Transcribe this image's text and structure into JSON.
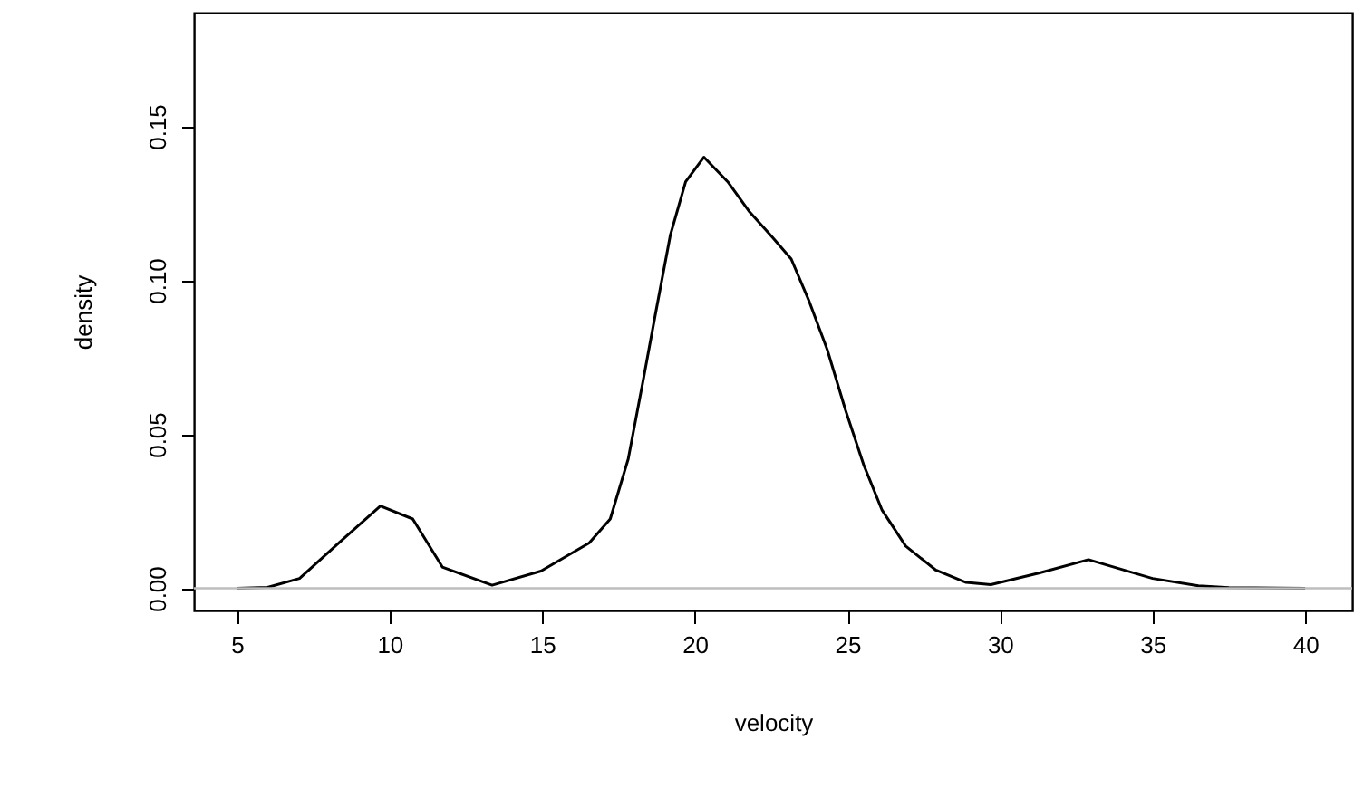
{
  "chart_data": {
    "type": "line",
    "xlabel": "velocity",
    "ylabel": "density",
    "x": [
      5,
      6,
      7.05,
      8.28,
      9.7,
      10.76,
      11.73,
      13.36,
      14.96,
      16.54,
      17.23,
      17.82,
      18.31,
      18.71,
      19.2,
      19.7,
      20.3,
      21.08,
      21.77,
      22.57,
      23.16,
      23.75,
      24.34,
      24.94,
      25.53,
      26.13,
      26.91,
      27.9,
      28.89,
      29.7,
      31.3,
      32.9,
      35,
      36.5,
      37.5,
      40
    ],
    "series": [
      {
        "color": "#000000",
        "values": [
          0,
          0.0003,
          0.0032,
          0.0142,
          0.0267,
          0.0225,
          0.0069,
          0.001,
          0.0056,
          0.0147,
          0.0225,
          0.042,
          0.0676,
          0.089,
          0.1147,
          0.132,
          0.14,
          0.132,
          0.1225,
          0.1137,
          0.1069,
          0.0931,
          0.0775,
          0.0578,
          0.0402,
          0.0255,
          0.0137,
          0.0059,
          0.0019,
          0.0012,
          0.005,
          0.0093,
          0.0032,
          0.0008,
          0.0002,
          0
        ]
      }
    ],
    "xlim": [
      3.59,
      41.54
    ],
    "xticks": [
      5,
      10,
      15,
      20,
      25,
      30,
      35,
      40
    ],
    "ylim": [
      -0.0072,
      0.1869
    ],
    "yticks": [
      {
        "value": 0,
        "label": "0.00"
      },
      {
        "value": 0.05,
        "label": "0.05"
      },
      {
        "value": 0.1,
        "label": "0.10"
      },
      {
        "value": 0.15,
        "label": "0.15"
      }
    ],
    "ref_lines": [
      {
        "axis": "y",
        "value": 0,
        "color": "#bebebe"
      }
    ],
    "grid": false
  }
}
